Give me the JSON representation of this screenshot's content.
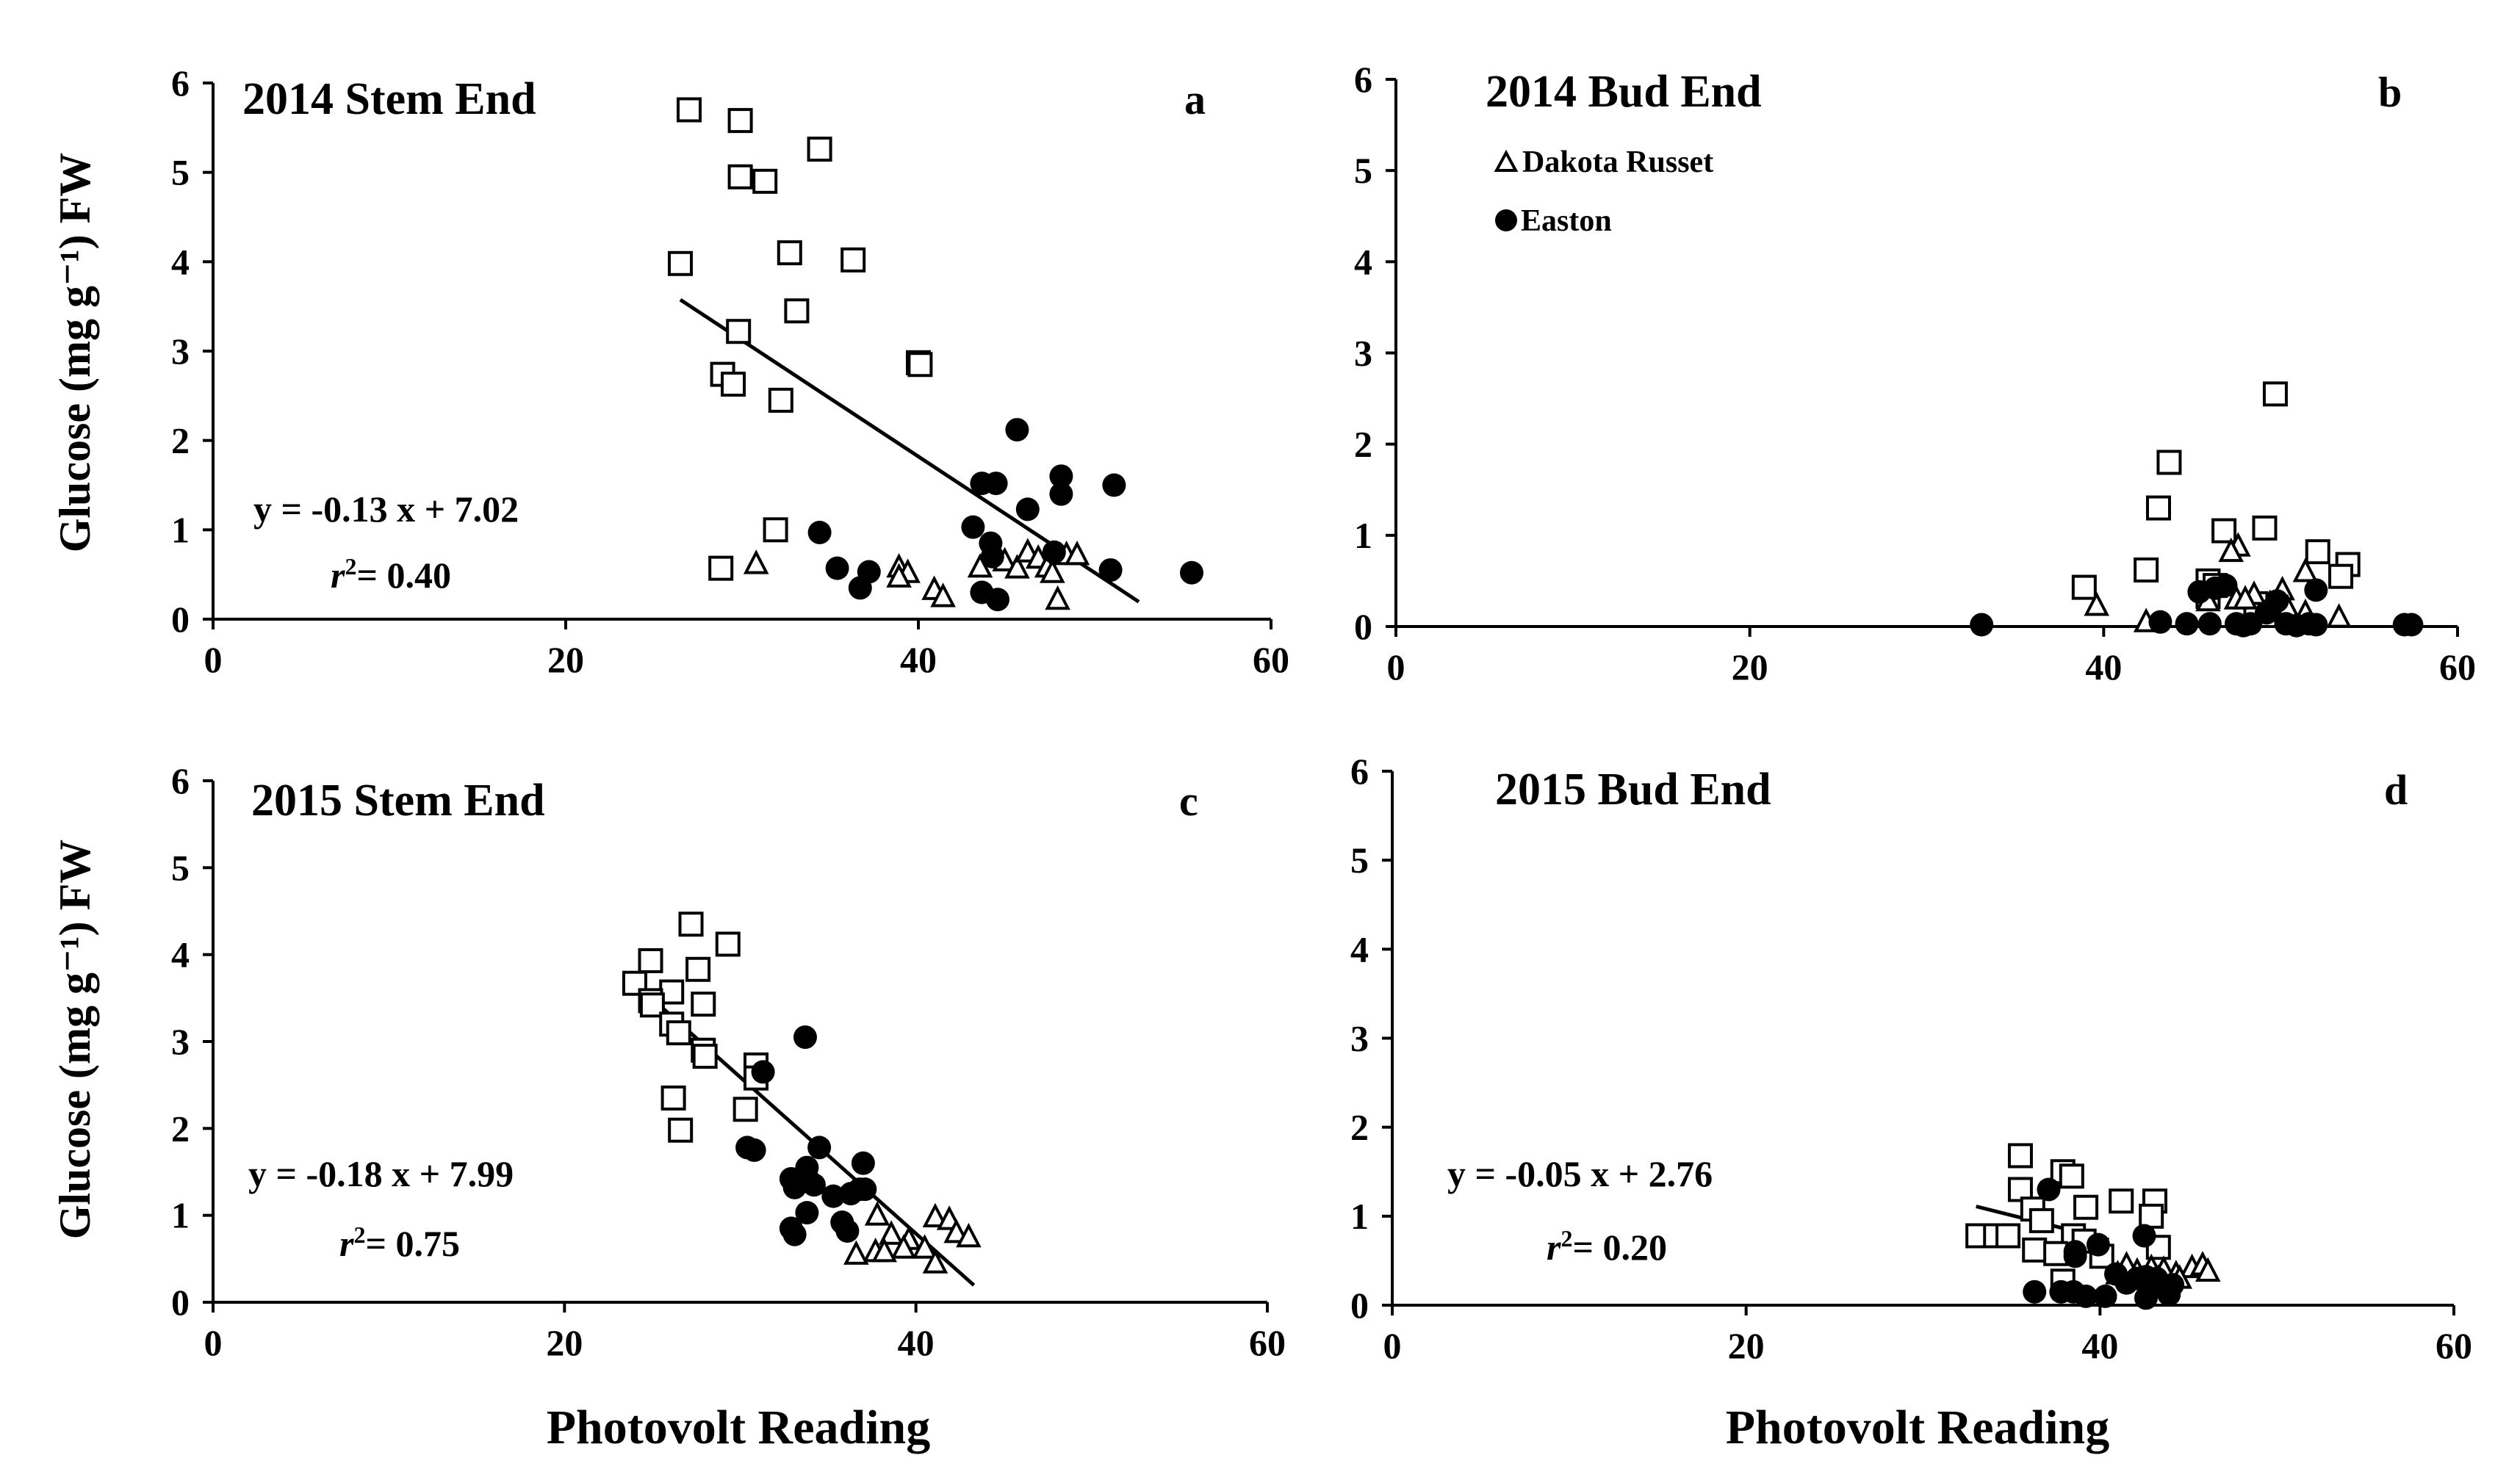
{
  "figure": {
    "y_axis_label": "Glucose (mg g⁻¹) FW",
    "x_axis_label": "Photovolt Reading"
  },
  "legend": {
    "items": [
      {
        "name": "Dakota Russet",
        "marker": "triangle"
      },
      {
        "name": "Easton",
        "marker": "circle"
      }
    ]
  },
  "colors": {
    "ink": "#000000",
    "background": "#ffffff"
  },
  "chart_data": [
    {
      "id": "a",
      "type": "scatter",
      "title": "2014 Stem End",
      "panel_letter": "a",
      "xlim": [
        0,
        60
      ],
      "ylim": [
        0,
        6
      ],
      "x_ticks": [
        "0",
        "20",
        "40",
        "60"
      ],
      "y_ticks": [
        "0",
        "1",
        "2",
        "3",
        "4",
        "5",
        "6"
      ],
      "equation": "y = -0.13 x + 7.02",
      "r2_label": "r",
      "r2_value": "= 0.40",
      "trendline": {
        "slope": -0.13,
        "intercept": 7.02,
        "x_range": [
          26.5,
          52.5
        ]
      },
      "series": [
        {
          "name": "Unlabeled (squares)",
          "marker": "square",
          "points": [
            [
              27.0,
              5.7
            ],
            [
              29.9,
              5.58
            ],
            [
              34.4,
              5.26
            ],
            [
              29.9,
              4.95
            ],
            [
              31.3,
              4.9
            ],
            [
              32.7,
              4.1
            ],
            [
              36.3,
              4.02
            ],
            [
              26.5,
              3.98
            ],
            [
              33.1,
              3.45
            ],
            [
              29.8,
              3.22
            ],
            [
              40.0,
              2.87
            ],
            [
              40.1,
              2.85
            ],
            [
              28.9,
              2.74
            ],
            [
              29.5,
              2.63
            ],
            [
              32.2,
              2.45
            ],
            [
              31.9,
              1.0
            ],
            [
              28.8,
              0.57
            ]
          ]
        },
        {
          "name": "Dakota Russet",
          "marker": "triangle",
          "points": [
            [
              30.8,
              0.62
            ],
            [
              38.9,
              0.58
            ],
            [
              39.4,
              0.52
            ],
            [
              38.9,
              0.47
            ],
            [
              40.9,
              0.33
            ],
            [
              41.4,
              0.25
            ],
            [
              43.5,
              0.58
            ],
            [
              44.9,
              0.65
            ],
            [
              45.6,
              0.57
            ],
            [
              46.2,
              0.75
            ],
            [
              46.8,
              0.68
            ],
            [
              47.3,
              0.58
            ],
            [
              47.6,
              0.52
            ],
            [
              48.4,
              0.72
            ],
            [
              49.0,
              0.72
            ],
            [
              47.9,
              0.22
            ]
          ]
        },
        {
          "name": "Easton",
          "marker": "circle",
          "points": [
            [
              45.6,
              2.12
            ],
            [
              48.1,
              1.6
            ],
            [
              43.6,
              1.52
            ],
            [
              44.4,
              1.52
            ],
            [
              48.1,
              1.4
            ],
            [
              51.1,
              1.5
            ],
            [
              46.2,
              1.23
            ],
            [
              34.4,
              0.97
            ],
            [
              43.1,
              1.03
            ],
            [
              44.1,
              0.85
            ],
            [
              44.2,
              0.7
            ],
            [
              47.7,
              0.75
            ],
            [
              35.4,
              0.57
            ],
            [
              37.2,
              0.53
            ],
            [
              50.9,
              0.55
            ],
            [
              55.5,
              0.52
            ],
            [
              36.7,
              0.35
            ],
            [
              43.6,
              0.3
            ],
            [
              44.5,
              0.22
            ]
          ]
        }
      ]
    },
    {
      "id": "b",
      "type": "scatter",
      "title": "2014 Bud End",
      "panel_letter": "b",
      "xlim": [
        0,
        60
      ],
      "ylim": [
        0,
        6
      ],
      "x_ticks": [
        "0",
        "20",
        "40",
        "60"
      ],
      "y_ticks": [
        "0",
        "1",
        "2",
        "3",
        "4",
        "5",
        "6"
      ],
      "series": [
        {
          "name": "Unlabeled (squares)",
          "marker": "square",
          "points": [
            [
              49.7,
              2.55
            ],
            [
              43.7,
              1.8
            ],
            [
              43.1,
              1.3
            ],
            [
              46.8,
              1.05
            ],
            [
              49.1,
              1.08
            ],
            [
              42.4,
              0.62
            ],
            [
              52.1,
              0.82
            ],
            [
              53.8,
              0.68
            ],
            [
              38.9,
              0.43
            ],
            [
              45.9,
              0.5
            ],
            [
              46.3,
              0.45
            ],
            [
              53.4,
              0.55
            ],
            [
              45.9,
              0.33
            ],
            [
              48.6,
              0.25
            ]
          ]
        },
        {
          "name": "Dakota Russet",
          "marker": "triangle",
          "points": [
            [
              47.6,
              0.88
            ],
            [
              47.2,
              0.82
            ],
            [
              51.4,
              0.6
            ],
            [
              39.6,
              0.23
            ],
            [
              42.4,
              0.05
            ],
            [
              48.5,
              0.35
            ],
            [
              49.4,
              0.25
            ],
            [
              50.1,
              0.4
            ],
            [
              50.4,
              0.2
            ],
            [
              51.4,
              0.15
            ],
            [
              53.3,
              0.1
            ],
            [
              47.5,
              0.3
            ],
            [
              48.0,
              0.3
            ],
            [
              45.9,
              0.28
            ]
          ]
        },
        {
          "name": "Easton",
          "marker": "circle",
          "points": [
            [
              33.1,
              0.02
            ],
            [
              43.2,
              0.05
            ],
            [
              44.7,
              0.03
            ],
            [
              45.4,
              0.38
            ],
            [
              46.3,
              0.42
            ],
            [
              46.9,
              0.45
            ],
            [
              47.5,
              0.03
            ],
            [
              47.9,
              0.01
            ],
            [
              48.3,
              0.03
            ],
            [
              49.2,
              0.15
            ],
            [
              49.8,
              0.28
            ],
            [
              50.3,
              0.03
            ],
            [
              50.9,
              0.01
            ],
            [
              51.6,
              0.03
            ],
            [
              52.0,
              0.4
            ],
            [
              52.0,
              0.02
            ],
            [
              57.0,
              0.02
            ],
            [
              57.4,
              0.02
            ],
            [
              46.0,
              0.03
            ]
          ]
        }
      ]
    },
    {
      "id": "c",
      "type": "scatter",
      "title": "2015 Stem End",
      "panel_letter": "c",
      "xlim": [
        0,
        60
      ],
      "ylim": [
        0,
        6
      ],
      "x_ticks": [
        "0",
        "20",
        "40",
        "60"
      ],
      "y_ticks": [
        "0",
        "1",
        "2",
        "3",
        "4",
        "5",
        "6"
      ],
      "equation": "y = -0.18 x + 7.99",
      "r2_label": "r",
      "r2_value": "= 0.75",
      "trendline": {
        "slope": -0.18,
        "intercept": 7.99,
        "x_range": [
          24.0,
          43.3
        ]
      },
      "series": [
        {
          "name": "Unlabeled (squares)",
          "marker": "square",
          "points": [
            [
              27.2,
              4.35
            ],
            [
              29.3,
              4.12
            ],
            [
              24.9,
              3.93
            ],
            [
              27.6,
              3.83
            ],
            [
              24.0,
              3.67
            ],
            [
              26.1,
              3.57
            ],
            [
              27.9,
              3.43
            ],
            [
              24.9,
              3.47
            ],
            [
              25.0,
              3.42
            ],
            [
              26.1,
              3.2
            ],
            [
              26.5,
              3.1
            ],
            [
              27.9,
              2.9
            ],
            [
              28.0,
              2.83
            ],
            [
              30.9,
              2.73
            ],
            [
              30.9,
              2.58
            ],
            [
              26.2,
              2.35
            ],
            [
              30.3,
              2.22
            ],
            [
              26.6,
              1.98
            ]
          ]
        },
        {
          "name": "Dakota Russet",
          "marker": "triangle",
          "points": [
            [
              41.1,
              0.98
            ],
            [
              41.9,
              0.95
            ],
            [
              37.8,
              1.0
            ],
            [
              42.3,
              0.8
            ],
            [
              43.0,
              0.75
            ],
            [
              38.6,
              0.78
            ],
            [
              39.6,
              0.72
            ],
            [
              40.5,
              0.62
            ],
            [
              39.3,
              0.62
            ],
            [
              37.7,
              0.58
            ],
            [
              36.6,
              0.55
            ],
            [
              41.1,
              0.45
            ],
            [
              38.2,
              0.58
            ]
          ]
        },
        {
          "name": "Easton",
          "marker": "circle",
          "points": [
            [
              33.7,
              3.05
            ],
            [
              31.3,
              2.65
            ],
            [
              30.4,
              1.78
            ],
            [
              30.8,
              1.75
            ],
            [
              34.5,
              1.78
            ],
            [
              37.0,
              1.6
            ],
            [
              32.9,
              1.42
            ],
            [
              33.8,
              1.55
            ],
            [
              33.9,
              1.4
            ],
            [
              33.1,
              1.32
            ],
            [
              34.2,
              1.35
            ],
            [
              35.3,
              1.22
            ],
            [
              36.3,
              1.25
            ],
            [
              36.8,
              1.3
            ],
            [
              37.1,
              1.3
            ],
            [
              33.8,
              1.03
            ],
            [
              35.8,
              0.92
            ],
            [
              36.1,
              0.82
            ],
            [
              32.9,
              0.85
            ],
            [
              33.1,
              0.78
            ]
          ]
        }
      ]
    },
    {
      "id": "d",
      "type": "scatter",
      "title": "2015 Bud End",
      "panel_letter": "d",
      "xlim": [
        0,
        60
      ],
      "ylim": [
        0,
        6
      ],
      "x_ticks": [
        "0",
        "20",
        "40",
        "60"
      ],
      "y_ticks": [
        "0",
        "1",
        "2",
        "3",
        "4",
        "5",
        "6"
      ],
      "equation": "y = -0.05 x + 2.76",
      "r2_label": "r",
      "r2_value": "= 0.20",
      "trendline": {
        "slope": -0.05,
        "intercept": 2.76,
        "x_range": [
          33.0,
          40.5
        ]
      },
      "series": [
        {
          "name": "Unlabeled (squares)",
          "marker": "square",
          "points": [
            [
              35.5,
              1.68
            ],
            [
              37.9,
              1.5
            ],
            [
              38.4,
              1.45
            ],
            [
              35.5,
              1.3
            ],
            [
              36.2,
              1.08
            ],
            [
              41.2,
              1.17
            ],
            [
              43.1,
              1.17
            ],
            [
              39.2,
              1.1
            ],
            [
              42.9,
              1.0
            ],
            [
              36.7,
              0.95
            ],
            [
              33.1,
              0.78
            ],
            [
              34.1,
              0.78
            ],
            [
              34.8,
              0.78
            ],
            [
              38.5,
              0.78
            ],
            [
              39.1,
              0.72
            ],
            [
              43.3,
              0.65
            ],
            [
              36.3,
              0.62
            ],
            [
              37.5,
              0.58
            ],
            [
              40.1,
              0.55
            ],
            [
              37.9,
              0.27
            ]
          ]
        },
        {
          "name": "Dakota Russet",
          "marker": "triangle",
          "points": [
            [
              41.5,
              0.45
            ],
            [
              42.1,
              0.38
            ],
            [
              42.9,
              0.42
            ],
            [
              43.6,
              0.4
            ],
            [
              44.3,
              0.35
            ],
            [
              45.2,
              0.42
            ],
            [
              45.8,
              0.45
            ],
            [
              46.1,
              0.38
            ],
            [
              44.5,
              0.3
            ],
            [
              43.3,
              0.3
            ],
            [
              41.0,
              0.35
            ]
          ]
        },
        {
          "name": "Easton",
          "marker": "circle",
          "points": [
            [
              37.1,
              1.3
            ],
            [
              38.6,
              0.6
            ],
            [
              39.9,
              0.68
            ],
            [
              42.5,
              0.78
            ],
            [
              38.6,
              0.55
            ],
            [
              40.9,
              0.35
            ],
            [
              42.1,
              0.3
            ],
            [
              42.6,
              0.32
            ],
            [
              43.2,
              0.3
            ],
            [
              41.5,
              0.25
            ],
            [
              44.1,
              0.23
            ],
            [
              42.8,
              0.2
            ],
            [
              36.3,
              0.15
            ],
            [
              37.8,
              0.15
            ],
            [
              38.5,
              0.15
            ],
            [
              39.2,
              0.1
            ],
            [
              40.3,
              0.1
            ],
            [
              42.6,
              0.08
            ],
            [
              43.9,
              0.12
            ]
          ]
        }
      ]
    }
  ]
}
